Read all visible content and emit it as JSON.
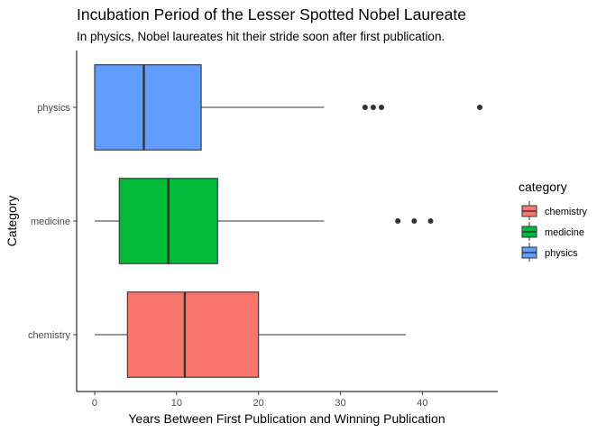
{
  "chart_data": {
    "type": "boxplot",
    "orientation": "horizontal",
    "title": "Incubation Period of the Lesser Spotted Nobel Laureate",
    "subtitle": "In physics, Nobel laureates hit their stride soon after first publication.",
    "xlabel": "Years Between First Publication and Winning Publication",
    "ylabel": "Category",
    "xlim": [
      -2.2,
      49.2
    ],
    "xticks": [
      0,
      10,
      20,
      30,
      40
    ],
    "categories": [
      "chemistry",
      "medicine",
      "physics"
    ],
    "legend": {
      "title": "category",
      "position": "right",
      "items": [
        "chemistry",
        "medicine",
        "physics"
      ]
    },
    "series": [
      {
        "category": "chemistry",
        "color": "#F8766D",
        "whisker_low": 0,
        "q1": 4,
        "median": 11,
        "q3": 20,
        "whisker_high": 38,
        "outliers": []
      },
      {
        "category": "medicine",
        "color": "#00BA38",
        "whisker_low": 0,
        "q1": 3,
        "median": 9,
        "q3": 15,
        "whisker_high": 28,
        "outliers": [
          37,
          39,
          41
        ]
      },
      {
        "category": "physics",
        "color": "#619CFF",
        "whisker_low": 0,
        "q1": 0,
        "median": 6,
        "q3": 13,
        "whisker_high": 28,
        "outliers": [
          33,
          34,
          35,
          47
        ]
      }
    ],
    "grid": false
  }
}
